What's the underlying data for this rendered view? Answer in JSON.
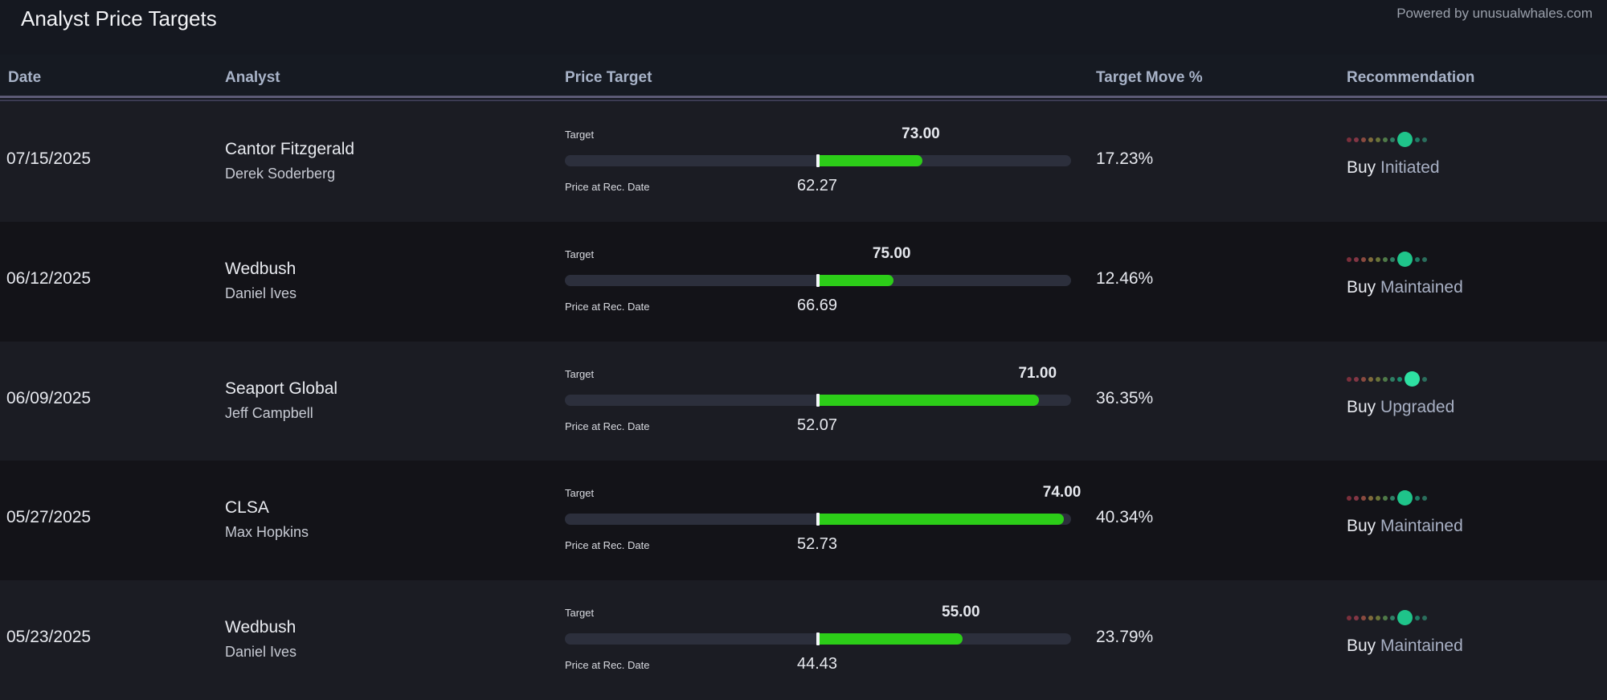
{
  "page": {
    "title": "Analyst Price Targets",
    "powered_by": "Powered by unusualwhales.com"
  },
  "columns": {
    "date": "Date",
    "analyst": "Analyst",
    "price_target": "Price Target",
    "target_move": "Target Move %",
    "recommendation": "Recommendation"
  },
  "labels": {
    "target": "Target",
    "price_at_rec": "Price at Rec. Date"
  },
  "colors": {
    "bar_fill": "#2ccd18",
    "bar_track": "#2c2f3c",
    "buy_dot": "#1fc48a",
    "strong_buy_dot": "#2ee0a2"
  },
  "rows": [
    {
      "date": "07/15/2025",
      "firm": "Cantor Fitzgerald",
      "analyst": "Derek Soderberg",
      "target": "73.00",
      "price_at_rec": "62.27",
      "target_move": "17.23%",
      "rec_action": "Buy",
      "rec_type": "Initiated",
      "rating_level": 8
    },
    {
      "date": "06/12/2025",
      "firm": "Wedbush",
      "analyst": "Daniel Ives",
      "target": "75.00",
      "price_at_rec": "66.69",
      "target_move": "12.46%",
      "rec_action": "Buy",
      "rec_type": "Maintained",
      "rating_level": 8
    },
    {
      "date": "06/09/2025",
      "firm": "Seaport Global",
      "analyst": "Jeff Campbell",
      "target": "71.00",
      "price_at_rec": "52.07",
      "target_move": "36.35%",
      "rec_action": "Buy",
      "rec_type": "Upgraded",
      "rating_level": 9
    },
    {
      "date": "05/27/2025",
      "firm": "CLSA",
      "analyst": "Max Hopkins",
      "target": "74.00",
      "price_at_rec": "52.73",
      "target_move": "40.34%",
      "rec_action": "Buy",
      "rec_type": "Maintained",
      "rating_level": 8
    },
    {
      "date": "05/23/2025",
      "firm": "Wedbush",
      "analyst": "Daniel Ives",
      "target": "55.00",
      "price_at_rec": "44.43",
      "target_move": "23.79%",
      "rec_action": "Buy",
      "rec_type": "Maintained",
      "rating_level": 8
    }
  ]
}
